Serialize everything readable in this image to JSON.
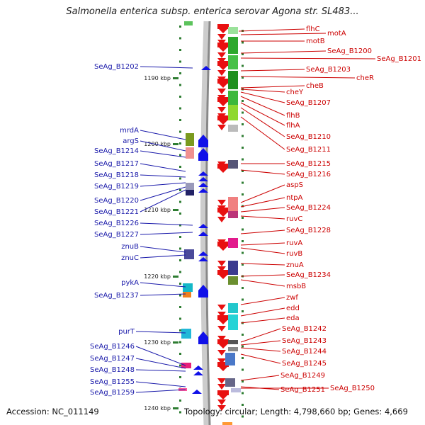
{
  "title": "Salmonella enterica subsp. enterica serovar Agona str. SL483...",
  "footer": {
    "accession": "Accession: NC_011149",
    "info": "Topology: circular; Length: 4,798,660 bp; Genes: 4,669"
  },
  "colors": {
    "forward_arrow": "#e81010",
    "reverse_arrow": "#1010e8",
    "forward_label": "#cc0000",
    "reverse_label": "#1a1aaa",
    "backbone": "#888888",
    "tick": "#2e7d32"
  },
  "kbp_marks": [
    {
      "label": "1190 kbp"
    },
    {
      "label": "1200 kbp"
    },
    {
      "label": "1210 kbp"
    },
    {
      "label": "1220 kbp"
    },
    {
      "label": "1230 kbp"
    },
    {
      "label": "1240 kbp"
    }
  ],
  "forward_genes": [
    "flhC",
    "motA",
    "motB",
    "SeAg_B1200",
    "SeAg_B1201",
    "SeAg_B1203",
    "cheR",
    "cheB",
    "cheY",
    "SeAg_B1207",
    "flhB",
    "flhA",
    "SeAg_B1210",
    "SeAg_B1211",
    "SeAg_B1215",
    "SeAg_B1216",
    "aspS",
    "ntpA",
    "SeAg_B1224",
    "ruvC",
    "SeAg_B1228",
    "ruvA",
    "ruvB",
    "znuA",
    "SeAg_B1234",
    "msbB",
    "zwf",
    "edd",
    "eda",
    "SeAg_B1242",
    "SeAg_B1243",
    "SeAg_B1244",
    "SeAg_B1245",
    "SeAg_B1249",
    "SeAg_B1251",
    "SeAg_B1250"
  ],
  "reverse_genes": [
    "SeAg_B1202",
    "mrdA",
    "argS",
    "SeAg_B1214",
    "SeAg_B1217",
    "SeAg_B1218",
    "SeAg_B1219",
    "SeAg_B1220",
    "SeAg_B1221",
    "SeAg_B1226",
    "SeAg_B1227",
    "znuB",
    "znuC",
    "pykA",
    "SeAg_B1237",
    "purT",
    "SeAg_B1246",
    "SeAg_B1247",
    "SeAg_B1248",
    "SeAg_B1255",
    "SeAg_B1259"
  ]
}
